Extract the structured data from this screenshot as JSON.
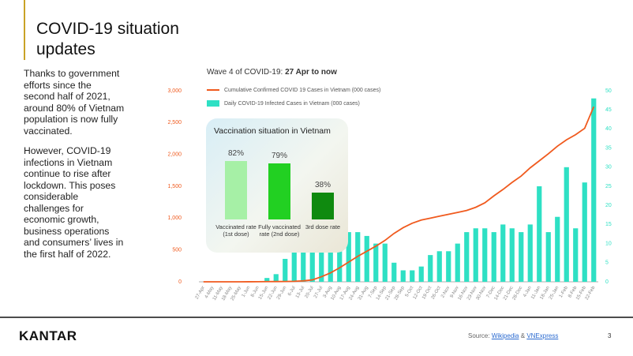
{
  "header": {
    "title": "COVID-19 situation updates"
  },
  "body": {
    "paragraphs": [
      "Thanks to government efforts since the second half of 2021, around 80% of Vietnam population is now fully vaccinated.",
      "However, COVID-19 infections in Vietnam continue to rise after lockdown. This poses considerable challenges for economic growth, business operations and consumers’ lives in the first half of 2022."
    ]
  },
  "chart_data": [
    {
      "type": "combo",
      "title": "Wave 4 of COVID-19:",
      "title_emphasis": "27 Apr to now",
      "categories": [
        "27-Apr",
        "4-May",
        "11-May",
        "18-May",
        "25-May",
        "1-Jun",
        "8-Jun",
        "15-Jun",
        "22-Jun",
        "29-Jun",
        "6-Jul",
        "13-Jul",
        "20-Jul",
        "27-Jul",
        "3-Aug",
        "10-Aug",
        "17-Aug",
        "24-Aug",
        "31-Aug",
        "7-Sep",
        "14-Sep",
        "21-Sep",
        "28-Sep",
        "5-Oct",
        "12-Oct",
        "19-Oct",
        "26-Oct",
        "2-Nov",
        "9-Nov",
        "16-Nov",
        "23-Nov",
        "30-Nov",
        "7-Dec",
        "14-Dec",
        "21-Dec",
        "28-Dec",
        "4-Jan",
        "11-Jan",
        "18-Jan",
        "25-Jan",
        "1-Feb",
        "8-Feb",
        "15-Feb",
        "22-Feb"
      ],
      "series": [
        {
          "name": "Cumulative Confirmed COVID 19 Cases in Vietnam (000 cases)",
          "type": "line",
          "color": "#f05a1e",
          "values": [
            0,
            0,
            0,
            0,
            0,
            1,
            2,
            3,
            4,
            5,
            8,
            15,
            30,
            80,
            140,
            220,
            310,
            400,
            480,
            560,
            650,
            760,
            850,
            920,
            970,
            1000,
            1030,
            1060,
            1090,
            1120,
            1170,
            1240,
            1350,
            1450,
            1560,
            1660,
            1790,
            1900,
            2010,
            2130,
            2230,
            2310,
            2410,
            2750
          ]
        },
        {
          "name": "Daily COVID-19 Infected Cases in Vietnam (000 cases)",
          "type": "bar",
          "axis": "y2",
          "color": "#2ee0c4",
          "values": [
            0,
            0,
            0,
            0,
            0,
            0,
            0,
            1,
            2,
            6,
            8,
            9,
            10,
            10,
            11,
            12,
            13,
            13,
            12,
            10,
            10,
            5,
            3,
            3,
            4,
            7,
            8,
            8,
            10,
            13,
            14,
            14,
            13,
            15,
            14,
            13,
            15,
            25,
            13,
            17,
            30,
            14,
            26,
            48
          ]
        }
      ],
      "ylim": [
        0,
        3000
      ],
      "yticks": [
        0,
        {
          "value": 500,
          "label": "500"
        },
        {
          "value": 1000,
          "label": "1,000"
        },
        {
          "value": 1500,
          "label": "1,500"
        },
        {
          "value": 2000,
          "label": "2,000"
        },
        {
          "value": 2500,
          "label": "2,500"
        },
        {
          "value": 3000,
          "label": "3,000"
        }
      ],
      "y2lim": [
        0,
        50
      ],
      "y2ticks": [
        0,
        5,
        10,
        15,
        20,
        25,
        30,
        35,
        40,
        45,
        50
      ]
    },
    {
      "type": "bar",
      "title": "Vaccination situation in Vietnam",
      "categories": [
        "Vaccinated rate (1st dose)",
        "Fully vaccinated rate (2nd dose)",
        "3rd dose rate"
      ],
      "values": [
        82,
        79,
        38
      ],
      "value_labels": [
        "82%",
        "79%",
        "38%"
      ],
      "colors": [
        "#a6f0a6",
        "#22d022",
        "#0f8a0f"
      ]
    }
  ],
  "footer": {
    "logo": "KANTAR",
    "source": "Source:",
    "links": [
      "Wikipedia",
      "VNExpress"
    ],
    "separator": "&",
    "page": "3"
  }
}
